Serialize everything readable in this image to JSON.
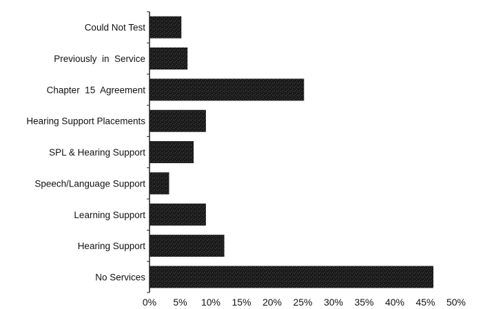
{
  "chart_data": {
    "type": "bar",
    "orientation": "horizontal",
    "title": "",
    "xlabel": "",
    "ylabel": "",
    "categories": [
      "Could Not Test",
      "Previously  in  Service",
      "Chapter  15  Agreement",
      "Hearing Support Placements",
      "SPL & Hearing Support",
      "Speech/Language Support",
      "Learning Support",
      "Hearing Support",
      "No Services"
    ],
    "values": [
      5.2,
      6.2,
      25.2,
      9.2,
      7.2,
      3.2,
      9.2,
      12.2,
      46.3
    ],
    "xlim": [
      0,
      50
    ],
    "x_ticks": [
      0,
      5,
      10,
      15,
      20,
      25,
      30,
      35,
      40,
      45,
      50
    ],
    "x_tick_labels": [
      "0%",
      "5%",
      "10%",
      "15%",
      "20%",
      "25%",
      "30%",
      "35%",
      "40%",
      "45%",
      "50%"
    ],
    "bar_color": "#1a1a1a",
    "grid": false,
    "legend": "none"
  }
}
